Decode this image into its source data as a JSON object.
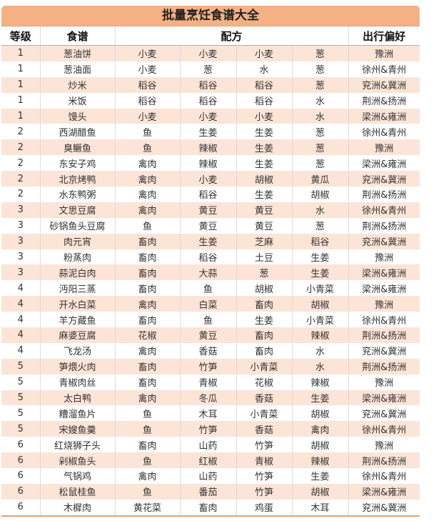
{
  "title": "批量烹饪食谱大全",
  "colors": {
    "title_bg": "#f4b183",
    "alt_row": "#fce4d6"
  },
  "headers": {
    "level": "等级",
    "recipe": "食谱",
    "ingredients": "配方",
    "travel": "出行偏好"
  },
  "rows": [
    [
      "1",
      "葱油饼",
      "小麦",
      "小麦",
      "小麦",
      "葱",
      "豫洲"
    ],
    [
      "1",
      "葱油面",
      "小麦",
      "葱",
      "水",
      "葱",
      "徐州&青州"
    ],
    [
      "1",
      "炒米",
      "稻谷",
      "稻谷",
      "稻谷",
      "葱",
      "兖洲&冀洲"
    ],
    [
      "1",
      "米饭",
      "稻谷",
      "稻谷",
      "稻谷",
      "水",
      "荆洲&扬洲"
    ],
    [
      "1",
      "馒头",
      "小麦",
      "小麦",
      "小麦",
      "水",
      "梁洲&雍洲"
    ],
    [
      "2",
      "西湖醋鱼",
      "鱼",
      "生姜",
      "生姜",
      "葱",
      "徐州&青州"
    ],
    [
      "2",
      "臭鳜鱼",
      "鱼",
      "辣椒",
      "生姜",
      "葱",
      "豫洲"
    ],
    [
      "2",
      "东安子鸡",
      "禽肉",
      "辣椒",
      "生姜",
      "葱",
      "梁洲&雍洲"
    ],
    [
      "2",
      "北京烤鸭",
      "禽肉",
      "小麦",
      "胡椒",
      "黄瓜",
      "兖洲&冀洲"
    ],
    [
      "2",
      "水东鸭粥",
      "禽肉",
      "稻谷",
      "生姜",
      "胡椒",
      "荆洲&扬洲"
    ],
    [
      "3",
      "文思豆腐",
      "禽肉",
      "黄豆",
      "黄豆",
      "水",
      "徐州&青州"
    ],
    [
      "3",
      "砂锅鱼头豆腐",
      "鱼",
      "黄豆",
      "黄豆",
      "葱",
      "荆洲&扬洲"
    ],
    [
      "3",
      "肉元宵",
      "畜肉",
      "生姜",
      "芝麻",
      "稻谷",
      "兖洲&冀洲"
    ],
    [
      "3",
      "粉蒸肉",
      "畜肉",
      "稻谷",
      "土豆",
      "生姜",
      "豫洲"
    ],
    [
      "3",
      "蒜泥白肉",
      "畜肉",
      "大蒜",
      "葱",
      "生姜",
      "梁洲&雍洲"
    ],
    [
      "4",
      "沔阳三蒸",
      "畜肉",
      "鱼",
      "胡椒",
      "小青菜",
      "梁洲&雍洲"
    ],
    [
      "4",
      "开水白菜",
      "禽肉",
      "白菜",
      "畜肉",
      "胡椒",
      "豫洲"
    ],
    [
      "4",
      "羊方藏鱼",
      "畜肉",
      "鱼",
      "生姜",
      "小青菜",
      "徐州&青州"
    ],
    [
      "4",
      "麻婆豆腐",
      "花椒",
      "黄豆",
      "畜肉",
      "辣椒",
      "荆洲&扬洲"
    ],
    [
      "4",
      "飞龙汤",
      "禽肉",
      "香菇",
      "畜肉",
      "水",
      "兖洲&冀洲"
    ],
    [
      "5",
      "笋煨火肉",
      "畜肉",
      "竹笋",
      "小青菜",
      "水",
      "荆洲&扬洲"
    ],
    [
      "5",
      "青椒肉丝",
      "畜肉",
      "青椒",
      "花椒",
      "辣椒",
      "豫洲"
    ],
    [
      "5",
      "太白鸭",
      "禽肉",
      "冬瓜",
      "香菇",
      "生姜",
      "梁洲&雍洲"
    ],
    [
      "5",
      "糟溜鱼片",
      "鱼",
      "木耳",
      "小青菜",
      "胡椒",
      "兖洲&冀洲"
    ],
    [
      "5",
      "宋嫂鱼羹",
      "鱼",
      "竹笋",
      "香菇",
      "禽肉",
      "徐州&青州"
    ],
    [
      "6",
      "红烧狮子头",
      "畜肉",
      "山药",
      "竹笋",
      "胡椒",
      "豫洲"
    ],
    [
      "6",
      "剁椒鱼头",
      "鱼",
      "红椒",
      "青椒",
      "辣椒",
      "荆洲&扬洲"
    ],
    [
      "6",
      "气锅鸡",
      "禽肉",
      "山药",
      "竹笋",
      "生姜",
      "徐州&青州"
    ],
    [
      "6",
      "松鼠桂鱼",
      "鱼",
      "番茄",
      "竹笋",
      "胡椒",
      "梁洲&雍洲"
    ],
    [
      "6",
      "木樨肉",
      "黄花菜",
      "畜肉",
      "鸡蛋",
      "木耳",
      "兖洲&冀洲"
    ]
  ]
}
